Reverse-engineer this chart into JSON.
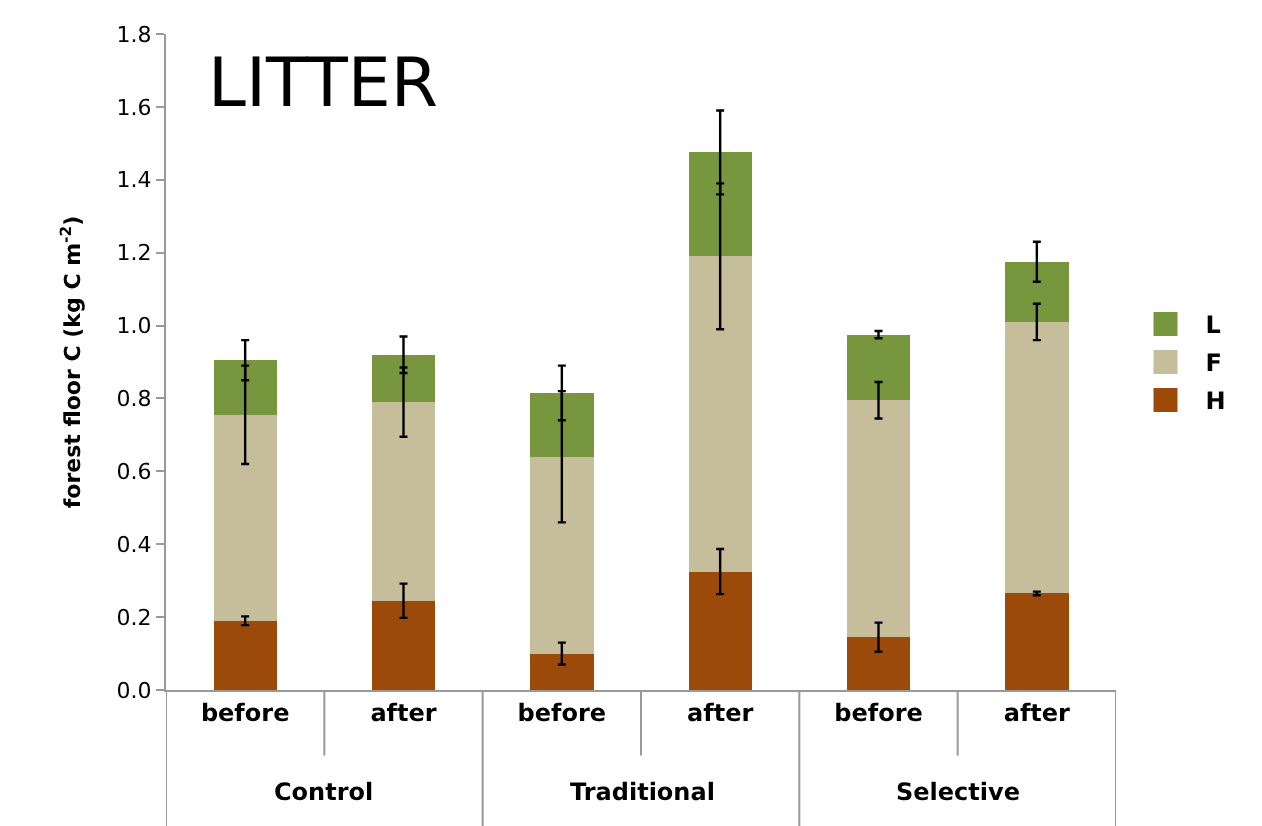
{
  "chart_data": {
    "type": "bar",
    "stacked": true,
    "title": "LITTER",
    "ylabel": "forest floor C (kg C m$^{-2}$)",
    "categories": [
      "before",
      "after",
      "before",
      "after",
      "before",
      "after"
    ],
    "annotations": [
      "Control",
      "Traditional",
      "Selective"
    ],
    "series": [
      {
        "name": "H",
        "color": "#9c4a0a",
        "values": [
          0.19,
          0.245,
          0.1,
          0.325,
          0.145,
          0.265
        ],
        "errors": [
          0.012,
          0.047,
          0.03,
          0.062,
          0.04,
          0.005
        ]
      },
      {
        "name": "F",
        "color": "#c6be9a",
        "values": [
          0.565,
          0.545,
          0.54,
          0.865,
          0.65,
          0.745
        ],
        "errors": [
          0.135,
          0.095,
          0.18,
          0.2,
          0.05,
          0.05
        ]
      },
      {
        "name": "L",
        "color": "#77963d",
        "values": [
          0.15,
          0.13,
          0.175,
          0.285,
          0.18,
          0.165
        ],
        "errors": [
          0.055,
          0.05,
          0.075,
          0.115,
          0.01,
          0.055
        ]
      }
    ],
    "ylim": [
      0,
      1.8
    ],
    "yticks": [
      {
        "value": 0,
        "label": "0.0"
      },
      0.2,
      0.4,
      0.6,
      0.8,
      {
        "value": 1,
        "label": "1.0"
      },
      1.2,
      1.4,
      1.6,
      1.8
    ],
    "legend": "right"
  }
}
